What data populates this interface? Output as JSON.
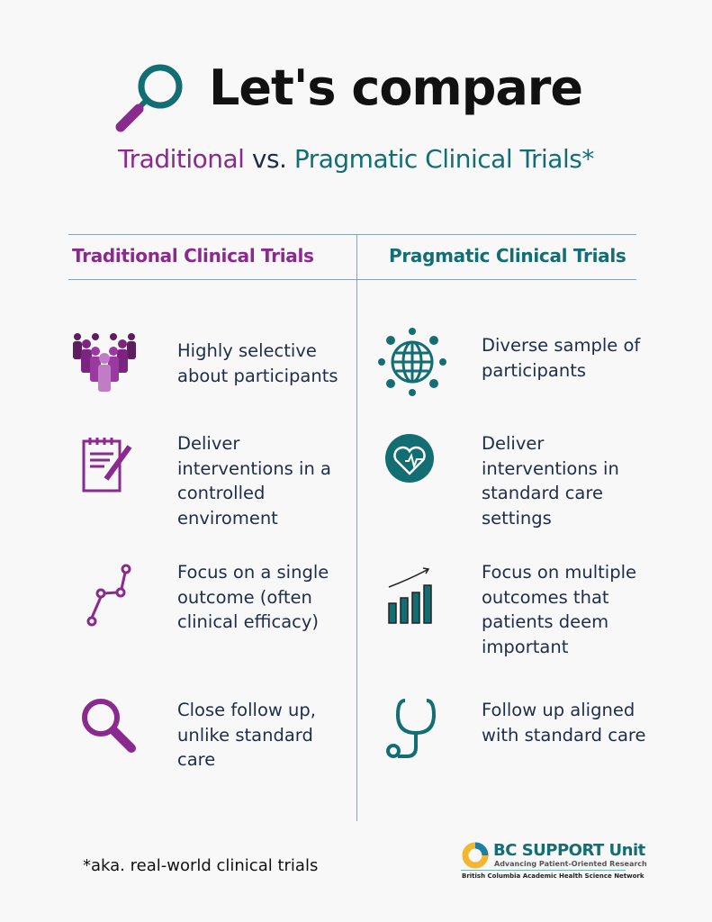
{
  "header": {
    "title": "Let's compare",
    "subtitle_a": "Traditional",
    "subtitle_vs": " vs. ",
    "subtitle_b": "Pragmatic Clinical Trials*"
  },
  "colors": {
    "purple": "#8b2a8e",
    "teal": "#136e73",
    "text": "#1f2d4a"
  },
  "columns": {
    "traditional": {
      "heading": "Traditional Clinical Trials",
      "items": [
        {
          "icon": "people-group-icon",
          "text": "Highly selective about participants"
        },
        {
          "icon": "notepad-pencil-icon",
          "text": "Deliver interventions in a controlled enviroment"
        },
        {
          "icon": "single-line-graph-icon",
          "text": "Focus on a single outcome (often clinical efficacy)"
        },
        {
          "icon": "magnifier-icon",
          "text": "Close follow up, unlike standard care"
        }
      ]
    },
    "pragmatic": {
      "heading": "Pragmatic Clinical Trials",
      "items": [
        {
          "icon": "globe-people-icon",
          "text": "Diverse sample of participants"
        },
        {
          "icon": "heart-pulse-icon",
          "text": "Deliver interventions in standard care settings"
        },
        {
          "icon": "bar-chart-growth-icon",
          "text": "Focus on multiple outcomes that patients deem important"
        },
        {
          "icon": "stethoscope-icon",
          "text": "Follow up aligned with standard care"
        }
      ]
    }
  },
  "footer": {
    "footnote": "*aka. real-world clinical trials",
    "logo_name": "BC SUPPORT Unit",
    "logo_tagline": "Advancing Patient-Oriented Research",
    "logo_network": "British Columbia Academic Health Science Network"
  }
}
